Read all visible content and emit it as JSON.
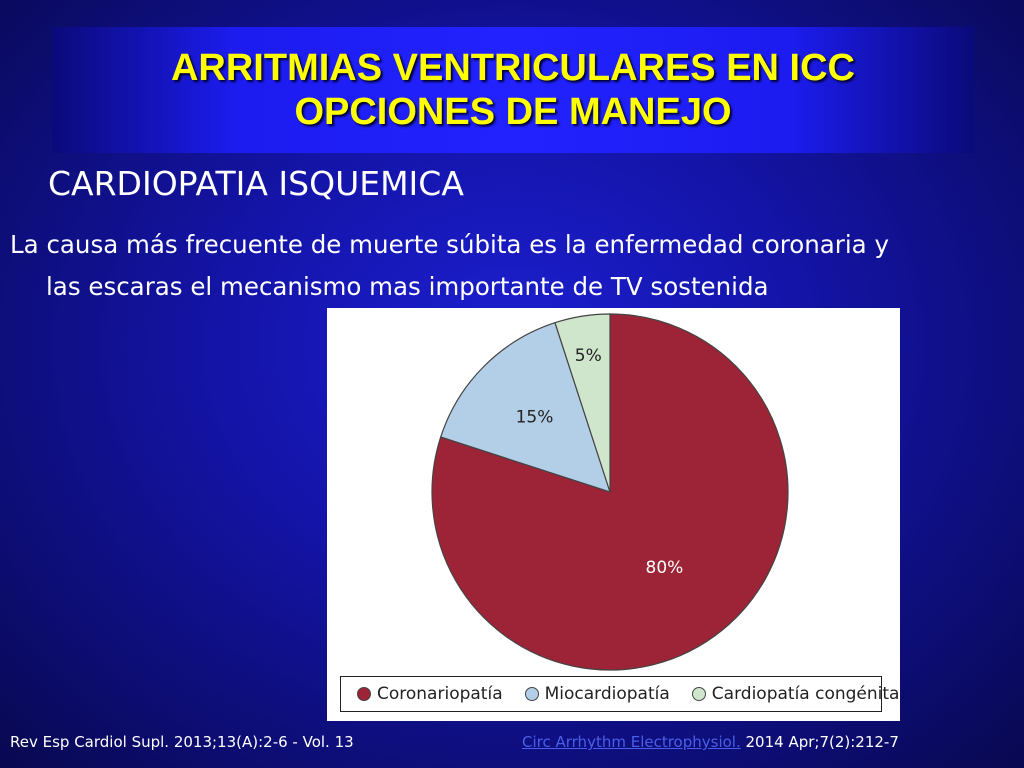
{
  "slide": {
    "title_line1": "ARRITMIAS VENTRICULARES EN ICC",
    "title_line2": "OPCIONES DE MANEJO",
    "subtitle": "CARDIOPATIA ISQUEMICA",
    "paragraph_line1": "La causa más frecuente de muerte súbita es la enfermedad coronaria y",
    "paragraph_line2": "las escaras el mecanismo mas importante de TV sostenida"
  },
  "chart_data": {
    "type": "pie",
    "title": "",
    "slices": [
      {
        "name": "Coronariopatía",
        "value": 80,
        "label": "80%",
        "color": "#9c2436"
      },
      {
        "name": "Miocardiopatía",
        "value": 15,
        "label": "15%",
        "color": "#b3cfe8"
      },
      {
        "name": "Cardiopatía congénita",
        "value": 5,
        "label": "5%",
        "color": "#cfe6cc"
      }
    ],
    "legend_position": "bottom"
  },
  "footer": {
    "left_reference": "Rev Esp Cardiol Supl. 2013;13(A):2-6 - Vol. 13",
    "right_link": "Circ Arrhythm Electrophysiol.",
    "right_reference": " 2014 Apr;7(2):212-7"
  },
  "colors": {
    "background": "#1414a8",
    "title_text": "#ffff00",
    "body_text": "#ffffff",
    "link": "#4a5fe8"
  }
}
